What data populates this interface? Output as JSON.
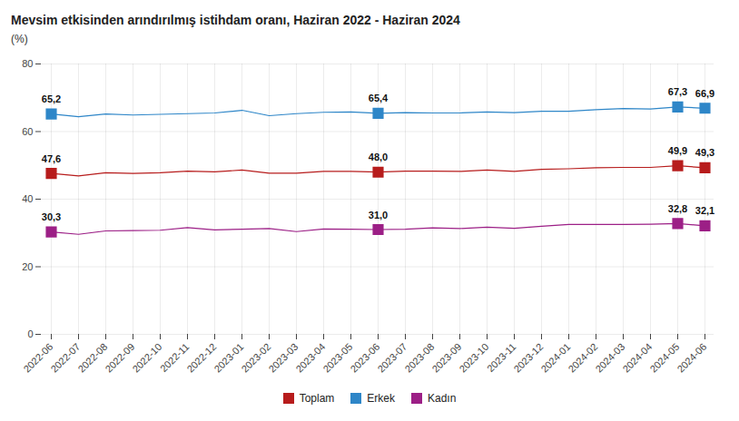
{
  "chart_data": {
    "type": "line",
    "title": "Mevsim etkisinden arındırılmış istihdam oranı, Haziran 2022 - Haziran 2024",
    "subtitle": "(%)",
    "categories": [
      "2022-06",
      "2022-07",
      "2022-08",
      "2022-09",
      "2022-10",
      "2022-11",
      "2022-12",
      "2023-01",
      "2023-02",
      "2023-03",
      "2023-04",
      "2023-05",
      "2023-06",
      "2023-07",
      "2023-08",
      "2023-09",
      "2023-10",
      "2023-11",
      "2023-12",
      "2024-01",
      "2024-02",
      "2024-03",
      "2024-04",
      "2024-05",
      "2024-06"
    ],
    "series": [
      {
        "name": "Toplam",
        "color": "#b71c1c",
        "marker": "square",
        "values": [
          47.6,
          46.9,
          47.8,
          47.6,
          47.8,
          48.3,
          48.1,
          48.6,
          47.7,
          47.7,
          48.2,
          48.2,
          48.0,
          48.3,
          48.3,
          48.2,
          48.6,
          48.2,
          48.8,
          49.0,
          49.3,
          49.4,
          49.4,
          49.9,
          49.3
        ],
        "value_labels": [
          "47,6",
          null,
          null,
          null,
          null,
          null,
          null,
          null,
          null,
          null,
          null,
          null,
          "48,0",
          null,
          null,
          null,
          null,
          null,
          null,
          null,
          null,
          null,
          null,
          "49,9",
          "49,3"
        ]
      },
      {
        "name": "Erkek",
        "color": "#2e86c8",
        "marker": "square",
        "values": [
          65.2,
          64.4,
          65.2,
          64.9,
          65.1,
          65.3,
          65.5,
          66.3,
          64.7,
          65.3,
          65.7,
          65.8,
          65.4,
          65.6,
          65.5,
          65.5,
          65.8,
          65.6,
          66.0,
          66.0,
          66.5,
          66.8,
          66.7,
          67.3,
          66.9
        ],
        "value_labels": [
          "65,2",
          null,
          null,
          null,
          null,
          null,
          null,
          null,
          null,
          null,
          null,
          null,
          "65,4",
          null,
          null,
          null,
          null,
          null,
          null,
          null,
          null,
          null,
          null,
          "67,3",
          "66,9"
        ]
      },
      {
        "name": "Kadın",
        "color": "#9c1f86",
        "marker": "square",
        "values": [
          30.3,
          29.6,
          30.6,
          30.7,
          30.8,
          31.6,
          30.9,
          31.1,
          31.3,
          30.4,
          31.2,
          31.1,
          31.0,
          31.1,
          31.5,
          31.3,
          31.7,
          31.4,
          32.0,
          32.5,
          32.5,
          32.5,
          32.6,
          32.8,
          32.1
        ],
        "value_labels": [
          "30,3",
          null,
          null,
          null,
          null,
          null,
          null,
          null,
          null,
          null,
          null,
          null,
          "31,0",
          null,
          null,
          null,
          null,
          null,
          null,
          null,
          null,
          null,
          null,
          "32,8",
          "32,1"
        ]
      }
    ],
    "ylim": [
      0,
      80
    ],
    "yticks": [
      0,
      20,
      40,
      60,
      80
    ],
    "grid": true,
    "legend": "bottom",
    "data_labels": true
  }
}
